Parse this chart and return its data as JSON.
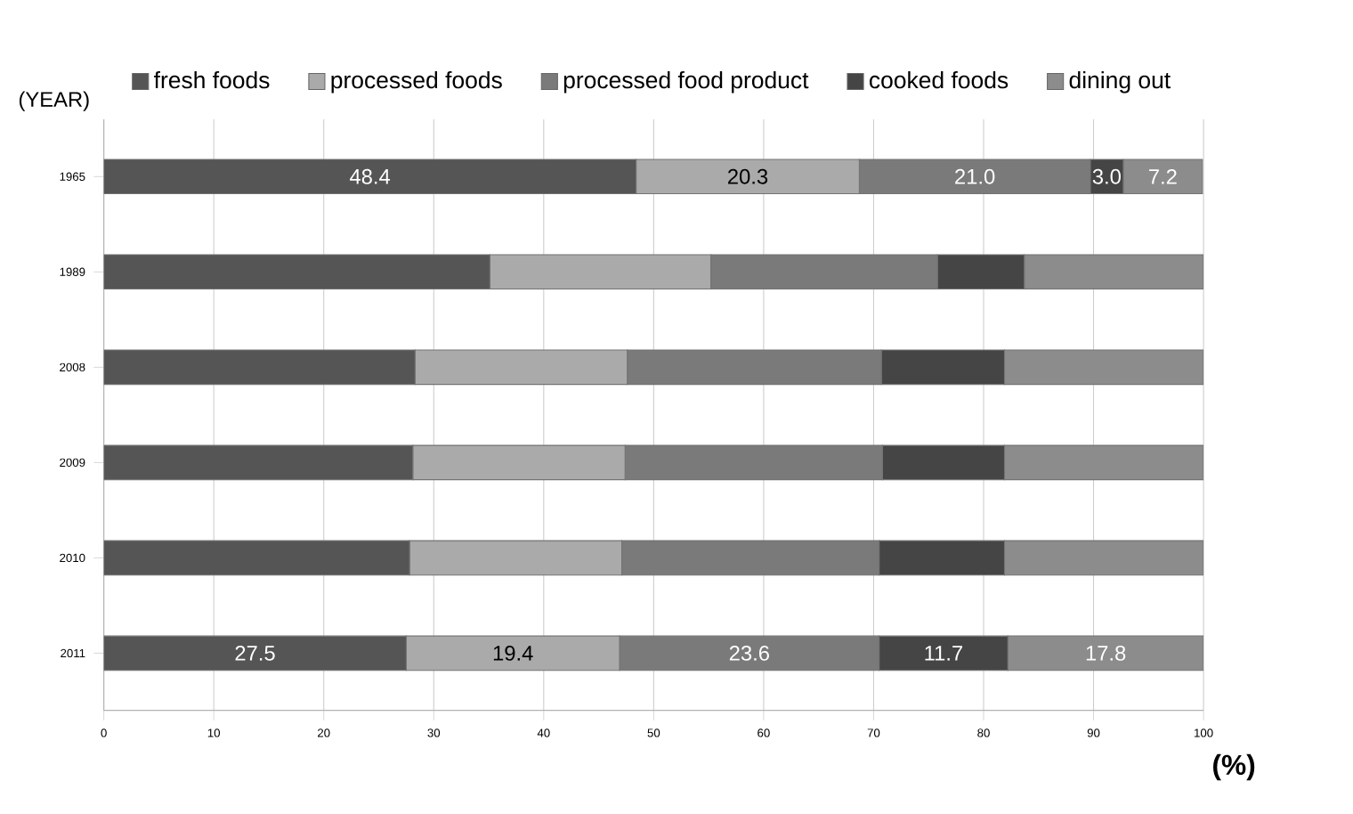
{
  "chart_data": {
    "type": "bar",
    "orientation": "horizontal",
    "stacked": true,
    "ylabel": "(YEAR)",
    "xlabel": "(%)",
    "categories": [
      "1965",
      "1989",
      "2008",
      "2009",
      "2010",
      "2011"
    ],
    "series": [
      {
        "name": "fresh foods",
        "color": "#555555",
        "values": [
          48.4,
          35.1,
          28.3,
          28.1,
          27.8,
          27.5
        ],
        "value_labels": [
          "48.4",
          null,
          null,
          null,
          null,
          "27.5"
        ]
      },
      {
        "name": "processed foods",
        "color": "#aaaaaa",
        "values": [
          20.3,
          20.1,
          19.3,
          19.3,
          19.3,
          19.4
        ],
        "value_labels": [
          "20.3",
          null,
          null,
          null,
          null,
          "19.4"
        ]
      },
      {
        "name": "processed food product",
        "color": "#7a7a7a",
        "values": [
          21.0,
          20.6,
          23.1,
          23.4,
          23.4,
          23.6
        ],
        "value_labels": [
          "21.0",
          null,
          null,
          null,
          null,
          "23.6"
        ]
      },
      {
        "name": "cooked foods",
        "color": "#454545",
        "values": [
          3.0,
          7.9,
          11.2,
          11.1,
          11.4,
          11.7
        ],
        "value_labels": [
          "3.0",
          null,
          null,
          null,
          null,
          "11.7"
        ]
      },
      {
        "name": "dining out",
        "color": "#8c8c8c",
        "values": [
          7.2,
          16.3,
          18.1,
          18.1,
          18.1,
          17.8
        ],
        "value_labels": [
          "7.2",
          null,
          null,
          null,
          null,
          "17.8"
        ]
      }
    ],
    "xlim": [
      0,
      100
    ],
    "xticks": [
      0,
      10,
      20,
      30,
      40,
      50,
      60,
      70,
      80,
      90,
      100
    ],
    "grid": "x",
    "legend": "top"
  }
}
